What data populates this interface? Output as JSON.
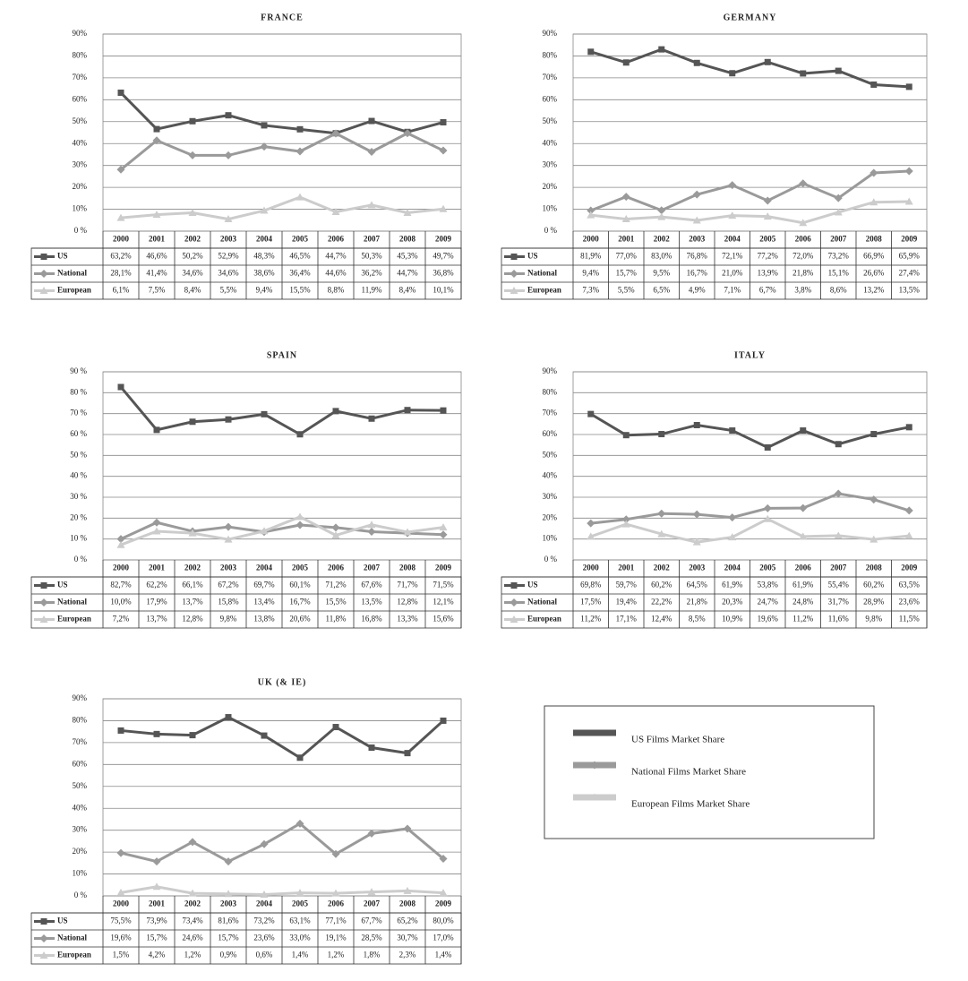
{
  "chart_data": [
    {
      "type": "line",
      "title": "FRANCE",
      "categories": [
        "2000",
        "2001",
        "2002",
        "2003",
        "2004",
        "2005",
        "2006",
        "2007",
        "2008",
        "2009"
      ],
      "ylim": [
        0,
        90
      ],
      "yticks": [
        {
          "value": 0,
          "label": "0 %"
        },
        {
          "value": 10,
          "label": "10%"
        },
        {
          "value": 20,
          "label": "20%"
        },
        {
          "value": 30,
          "label": "30%"
        },
        {
          "value": 40,
          "label": "40%"
        },
        {
          "value": 50,
          "label": "50%"
        },
        {
          "value": 60,
          "label": "60%"
        },
        {
          "value": 70,
          "label": "70%"
        },
        {
          "value": 80,
          "label": "80%"
        },
        {
          "value": 90,
          "label": "90%"
        }
      ],
      "grid": true,
      "series": [
        {
          "name": "US",
          "color": "#555555",
          "marker": "square",
          "values": [
            63.2,
            46.6,
            50.2,
            52.9,
            48.3,
            46.5,
            44.7,
            50.3,
            45.3,
            49.7
          ],
          "value_labels": [
            "63,2%",
            "46,6%",
            "50,2%",
            "52,9%",
            "48,3%",
            "46,5%",
            "44,7%",
            "50,3%",
            "45,3%",
            "49,7%"
          ]
        },
        {
          "name": "National",
          "color": "#9a9a9a",
          "marker": "diamond",
          "values": [
            28.1,
            41.4,
            34.6,
            34.6,
            38.6,
            36.4,
            44.6,
            36.2,
            44.7,
            36.8
          ],
          "value_labels": [
            "28,1%",
            "41,4%",
            "34,6%",
            "34,6%",
            "38,6%",
            "36,4%",
            "44,6%",
            "36,2%",
            "44,7%",
            "36,8%"
          ]
        },
        {
          "name": "European",
          "color": "#cccccc",
          "marker": "triangle",
          "values": [
            6.1,
            7.5,
            8.4,
            5.5,
            9.4,
            15.5,
            8.8,
            11.9,
            8.4,
            10.1
          ],
          "value_labels": [
            "6,1%",
            "7,5%",
            "8,4%",
            "5,5%",
            "9,4%",
            "15,5%",
            "8,8%",
            "11,9%",
            "8,4%",
            "10,1%"
          ]
        }
      ]
    },
    {
      "type": "line",
      "title": "GERMANY",
      "categories": [
        "2000",
        "2001",
        "2002",
        "2003",
        "2004",
        "2005",
        "2006",
        "2007",
        "2008",
        "2009"
      ],
      "ylim": [
        0,
        90
      ],
      "yticks": [
        {
          "value": 0,
          "label": "0 %"
        },
        {
          "value": 10,
          "label": "10%"
        },
        {
          "value": 20,
          "label": "20%"
        },
        {
          "value": 30,
          "label": "30%"
        },
        {
          "value": 40,
          "label": "40%"
        },
        {
          "value": 50,
          "label": "50%"
        },
        {
          "value": 60,
          "label": "60%"
        },
        {
          "value": 70,
          "label": "70%"
        },
        {
          "value": 80,
          "label": "80%"
        },
        {
          "value": 90,
          "label": "90%"
        }
      ],
      "grid": true,
      "series": [
        {
          "name": "US",
          "color": "#555555",
          "marker": "square",
          "values": [
            81.9,
            77.0,
            83.0,
            76.8,
            72.1,
            77.2,
            72.0,
            73.2,
            66.9,
            65.9
          ],
          "value_labels": [
            "81,9%",
            "77,0%",
            "83,0%",
            "76,8%",
            "72,1%",
            "77,2%",
            "72,0%",
            "73,2%",
            "66,9%",
            "65,9%"
          ]
        },
        {
          "name": "National",
          "color": "#9a9a9a",
          "marker": "diamond",
          "values": [
            9.4,
            15.7,
            9.5,
            16.7,
            21.0,
            13.9,
            21.8,
            15.1,
            26.6,
            27.4
          ],
          "value_labels": [
            "9,4%",
            "15,7%",
            "9,5%",
            "16,7%",
            "21,0%",
            "13,9%",
            "21,8%",
            "15,1%",
            "26,6%",
            "27,4%"
          ]
        },
        {
          "name": "European",
          "color": "#cccccc",
          "marker": "triangle",
          "values": [
            7.3,
            5.5,
            6.5,
            4.9,
            7.1,
            6.7,
            3.8,
            8.6,
            13.2,
            13.5
          ],
          "value_labels": [
            "7,3%",
            "5,5%",
            "6,5%",
            "4,9%",
            "7,1%",
            "6,7%",
            "3,8%",
            "8,6%",
            "13,2%",
            "13,5%"
          ]
        }
      ]
    },
    {
      "type": "line",
      "title": "SPAIN",
      "categories": [
        "2000",
        "2001",
        "2002",
        "2003",
        "2004",
        "2005",
        "2006",
        "2007",
        "2008",
        "2009"
      ],
      "ylim": [
        0,
        90
      ],
      "yticks": [
        {
          "value": 0,
          "label": "0 %"
        },
        {
          "value": 10,
          "label": "10 %"
        },
        {
          "value": 20,
          "label": "20 %"
        },
        {
          "value": 30,
          "label": "30 %"
        },
        {
          "value": 40,
          "label": "40 %"
        },
        {
          "value": 50,
          "label": "50 %"
        },
        {
          "value": 60,
          "label": "60 %"
        },
        {
          "value": 70,
          "label": "70 %"
        },
        {
          "value": 80,
          "label": "80 %"
        },
        {
          "value": 90,
          "label": "90 %"
        }
      ],
      "grid": true,
      "series": [
        {
          "name": "US",
          "color": "#555555",
          "marker": "square",
          "values": [
            82.7,
            62.2,
            66.1,
            67.2,
            69.7,
            60.1,
            71.2,
            67.6,
            71.7,
            71.5
          ],
          "value_labels": [
            "82,7%",
            "62,2%",
            "66,1%",
            "67,2%",
            "69,7%",
            "60,1%",
            "71,2%",
            "67,6%",
            "71,7%",
            "71,5%"
          ]
        },
        {
          "name": "National",
          "color": "#9a9a9a",
          "marker": "diamond",
          "values": [
            10.0,
            17.9,
            13.7,
            15.8,
            13.4,
            16.7,
            15.5,
            13.5,
            12.8,
            12.1
          ],
          "value_labels": [
            "10,0%",
            "17,9%",
            "13,7%",
            "15,8%",
            "13,4%",
            "16,7%",
            "15,5%",
            "13,5%",
            "12,8%",
            "12,1%"
          ]
        },
        {
          "name": "European",
          "color": "#cccccc",
          "marker": "triangle",
          "values": [
            7.2,
            13.7,
            12.8,
            9.8,
            13.8,
            20.6,
            11.8,
            16.8,
            13.3,
            15.6
          ],
          "value_labels": [
            "7,2%",
            "13,7%",
            "12,8%",
            "9,8%",
            "13,8%",
            "20,6%",
            "11,8%",
            "16,8%",
            "13,3%",
            "15,6%"
          ]
        }
      ]
    },
    {
      "type": "line",
      "title": "ITALY",
      "categories": [
        "2000",
        "2001",
        "2002",
        "2003",
        "2004",
        "2005",
        "2006",
        "2007",
        "2008",
        "2009"
      ],
      "ylim": [
        0,
        90
      ],
      "yticks": [
        {
          "value": 0,
          "label": "0 %"
        },
        {
          "value": 10,
          "label": "10%"
        },
        {
          "value": 20,
          "label": "20%"
        },
        {
          "value": 30,
          "label": "30%"
        },
        {
          "value": 40,
          "label": "40%"
        },
        {
          "value": 50,
          "label": "50%"
        },
        {
          "value": 60,
          "label": "60%"
        },
        {
          "value": 70,
          "label": "70%"
        },
        {
          "value": 80,
          "label": "80%"
        },
        {
          "value": 90,
          "label": "90%"
        }
      ],
      "grid": true,
      "series": [
        {
          "name": "US",
          "color": "#555555",
          "marker": "square",
          "values": [
            69.8,
            59.7,
            60.2,
            64.5,
            61.9,
            53.8,
            61.9,
            55.4,
            60.2,
            63.5
          ],
          "value_labels": [
            "69,8%",
            "59,7%",
            "60,2%",
            "64,5%",
            "61,9%",
            "53,8%",
            "61,9%",
            "55,4%",
            "60,2%",
            "63,5%"
          ]
        },
        {
          "name": "National",
          "color": "#9a9a9a",
          "marker": "diamond",
          "values": [
            17.5,
            19.4,
            22.2,
            21.8,
            20.3,
            24.7,
            24.8,
            31.7,
            28.9,
            23.6
          ],
          "value_labels": [
            "17,5%",
            "19,4%",
            "22,2%",
            "21,8%",
            "20,3%",
            "24,7%",
            "24,8%",
            "31,7%",
            "28,9%",
            "23,6%"
          ]
        },
        {
          "name": "European",
          "color": "#cccccc",
          "marker": "triangle",
          "values": [
            11.2,
            17.1,
            12.4,
            8.5,
            10.9,
            19.6,
            11.2,
            11.6,
            9.8,
            11.5
          ],
          "value_labels": [
            "11,2%",
            "17,1%",
            "12,4%",
            "8,5%",
            "10,9%",
            "19,6%",
            "11,2%",
            "11,6%",
            "9,8%",
            "11,5%"
          ]
        }
      ]
    },
    {
      "type": "line",
      "title": "UK (& IE)",
      "categories": [
        "2000",
        "2001",
        "2002",
        "2003",
        "2004",
        "2005",
        "2006",
        "2007",
        "2008",
        "2009"
      ],
      "ylim": [
        0,
        90
      ],
      "yticks": [
        {
          "value": 0,
          "label": "0 %"
        },
        {
          "value": 10,
          "label": "10%"
        },
        {
          "value": 20,
          "label": "20%"
        },
        {
          "value": 30,
          "label": "30%"
        },
        {
          "value": 40,
          "label": "40%"
        },
        {
          "value": 50,
          "label": "50%"
        },
        {
          "value": 60,
          "label": "60%"
        },
        {
          "value": 70,
          "label": "70%"
        },
        {
          "value": 80,
          "label": "80%"
        },
        {
          "value": 90,
          "label": "90%"
        }
      ],
      "grid": true,
      "series": [
        {
          "name": "US",
          "color": "#555555",
          "marker": "square",
          "values": [
            75.5,
            73.9,
            73.4,
            81.6,
            73.2,
            63.1,
            77.1,
            67.7,
            65.2,
            80.0
          ],
          "value_labels": [
            "75,5%",
            "73,9%",
            "73,4%",
            "81,6%",
            "73,2%",
            "63,1%",
            "77,1%",
            "67,7%",
            "65,2%",
            "80,0%"
          ]
        },
        {
          "name": "National",
          "color": "#9a9a9a",
          "marker": "diamond",
          "values": [
            19.6,
            15.7,
            24.6,
            15.7,
            23.6,
            33.0,
            19.1,
            28.5,
            30.7,
            17.0
          ],
          "value_labels": [
            "19,6%",
            "15,7%",
            "24,6%",
            "15,7%",
            "23,6%",
            "33,0%",
            "19,1%",
            "28,5%",
            "30,7%",
            "17,0%"
          ]
        },
        {
          "name": "European",
          "color": "#cccccc",
          "marker": "triangle",
          "values": [
            1.5,
            4.2,
            1.2,
            0.9,
            0.6,
            1.4,
            1.2,
            1.8,
            2.3,
            1.4
          ],
          "value_labels": [
            "1,5%",
            "4,2%",
            "1,2%",
            "0,9%",
            "0,6%",
            "1,4%",
            "1,2%",
            "1,8%",
            "2,3%",
            "1,4%"
          ]
        }
      ]
    }
  ],
  "legend": [
    "US Films Market Share",
    "National Films Market Share",
    "European Films Market Share"
  ]
}
